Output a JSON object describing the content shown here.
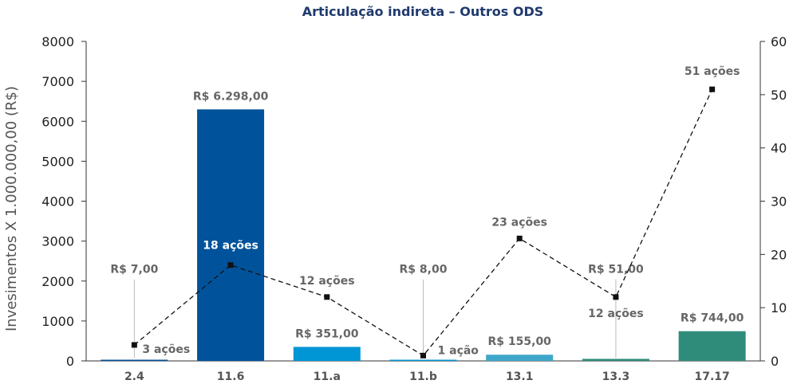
{
  "chart_data": {
    "type": "bar",
    "title": "Articulação indireta – Outros ODS",
    "ylabel": "Invesimentos X 1.000.000,00 (R$)",
    "ylim": [
      0,
      8000
    ],
    "y2lim": [
      0,
      60
    ],
    "yticks": [
      "0",
      "1000",
      "2000",
      "3000",
      "4000",
      "5000",
      "6000",
      "7000",
      "8000"
    ],
    "y2ticks": [
      "0",
      "10",
      "20",
      "30",
      "40",
      "50",
      "60"
    ],
    "categories": [
      "2.4",
      "11.6",
      "11.a",
      "11.b",
      "13.1",
      "13.3",
      "17.17"
    ],
    "series": [
      {
        "kind": "bar",
        "values": [
          7,
          6298,
          351,
          8,
          155,
          51,
          744
        ],
        "labels": [
          "R$ 7,00",
          "R$ 6.298,00",
          "R$ 351,00",
          "R$ 8,00",
          "R$ 155,00",
          "R$ 51,00",
          "R$ 744,00"
        ],
        "colors": [
          "#00529b",
          "#00529b",
          "#0096d6",
          "#0096d6",
          "#3fa7c9",
          "#2f8c7a",
          "#2f8c7a"
        ]
      },
      {
        "kind": "line",
        "axis": "right",
        "style": "dashed",
        "values": [
          3,
          18,
          12,
          1,
          23,
          12,
          51
        ],
        "labels": [
          "3 ações",
          "18 ações",
          "12 ações",
          "1 ação",
          "23 ações",
          "12 ações",
          "51 ações"
        ]
      }
    ]
  }
}
